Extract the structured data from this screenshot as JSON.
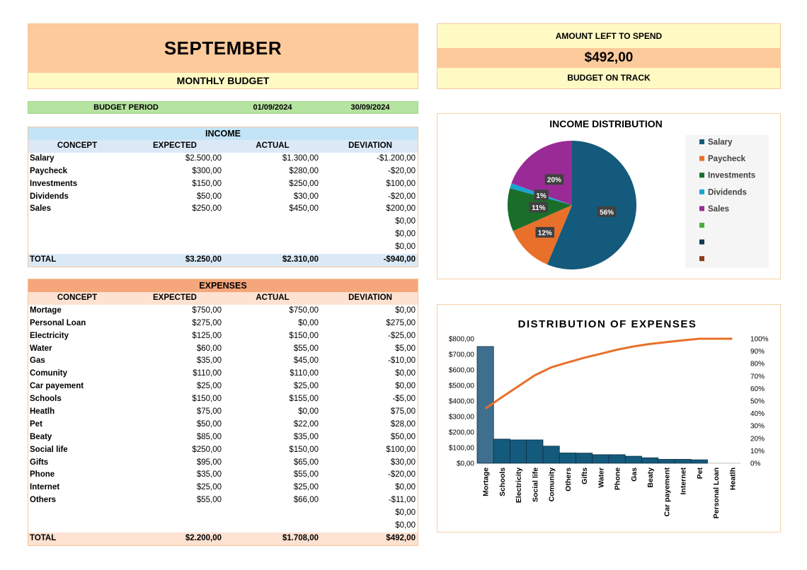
{
  "header": {
    "month": "SEPTEMBER",
    "subtitle": "MONTHLY BUDGET"
  },
  "summary": {
    "amount_label": "AMOUNT LEFT TO SPEND",
    "amount_value": "$492,00",
    "status": "BUDGET ON TRACK"
  },
  "period": {
    "label": "BUDGET PERIOD",
    "start": "01/09/2024",
    "end": "30/09/2024"
  },
  "columns": [
    "CONCEPT",
    "EXPECTED",
    "ACTUAL",
    "DEVIATION"
  ],
  "income": {
    "title": "INCOME",
    "rows": [
      [
        "Salary",
        "$2.500,00",
        "$1.300,00",
        "-$1.200,00"
      ],
      [
        "Paycheck",
        "$300,00",
        "$280,00",
        "-$20,00"
      ],
      [
        "Investments",
        "$150,00",
        "$250,00",
        "$100,00"
      ],
      [
        "Dividends",
        "$50,00",
        "$30,00",
        "-$20,00"
      ],
      [
        "Sales",
        "$250,00",
        "$450,00",
        "$200,00"
      ],
      [
        "",
        "",
        "",
        "$0,00"
      ],
      [
        "",
        "",
        "",
        "$0,00"
      ],
      [
        "",
        "",
        "",
        "$0,00"
      ]
    ],
    "total": [
      "TOTAL",
      "$3.250,00",
      "$2.310,00",
      "-$940,00"
    ]
  },
  "expenses": {
    "title": "EXPENSES",
    "rows": [
      [
        "Mortage",
        "$750,00",
        "$750,00",
        "$0,00"
      ],
      [
        "Personal Loan",
        "$275,00",
        "$0,00",
        "$275,00"
      ],
      [
        "Electricity",
        "$125,00",
        "$150,00",
        "-$25,00"
      ],
      [
        "Water",
        "$60,00",
        "$55,00",
        "$5,00"
      ],
      [
        "Gas",
        "$35,00",
        "$45,00",
        "-$10,00"
      ],
      [
        "Comunity",
        "$110,00",
        "$110,00",
        "$0,00"
      ],
      [
        "Car payement",
        "$25,00",
        "$25,00",
        "$0,00"
      ],
      [
        "Schools",
        "$150,00",
        "$155,00",
        "-$5,00"
      ],
      [
        "Heatlh",
        "$75,00",
        "$0,00",
        "$75,00"
      ],
      [
        "Pet",
        "$50,00",
        "$22,00",
        "$28,00"
      ],
      [
        "Beaty",
        "$85,00",
        "$35,00",
        "$50,00"
      ],
      [
        "Social life",
        "$250,00",
        "$150,00",
        "$100,00"
      ],
      [
        "Gifts",
        "$95,00",
        "$65,00",
        "$30,00"
      ],
      [
        "Phone",
        "$35,00",
        "$55,00",
        "-$20,00"
      ],
      [
        "Internet",
        "$25,00",
        "$25,00",
        "$0,00"
      ],
      [
        "Others",
        "$55,00",
        "$66,00",
        "-$11,00"
      ],
      [
        "",
        "",
        "",
        "$0,00"
      ],
      [
        "",
        "",
        "",
        "$0,00"
      ]
    ],
    "total": [
      "TOTAL",
      "$2.200,00",
      "$1.708,00",
      "$492,00"
    ]
  },
  "chart_data": [
    {
      "type": "pie",
      "title": "INCOME DISTRIBUTION",
      "categories": [
        "Salary",
        "Paycheck",
        "Investments",
        "Dividends",
        "Sales",
        "",
        "",
        ""
      ],
      "values": [
        1300,
        280,
        250,
        30,
        450,
        0,
        0,
        0
      ],
      "labels": [
        "56%",
        "12%",
        "11%",
        "1%",
        "20%"
      ],
      "colors": [
        "#145a7c",
        "#e8702a",
        "#1a6e2a",
        "#1aa3d1",
        "#9a2b96",
        "#4bae3c",
        "#0e3a55",
        "#8a3a1a"
      ],
      "legend": "right"
    },
    {
      "type": "bar",
      "title": "DISTRIBUTION OF EXPENSES",
      "categories": [
        "Mortage",
        "Schools",
        "Electricity",
        "Social life",
        "Comunity",
        "Others",
        "Gifts",
        "Water",
        "Phone",
        "Gas",
        "Beaty",
        "Car payement",
        "Internet",
        "Pet",
        "Personal Loan",
        "Heatlh"
      ],
      "values": [
        750,
        155,
        150,
        150,
        110,
        66,
        65,
        55,
        55,
        45,
        35,
        25,
        25,
        22,
        0,
        0
      ],
      "cumulative_pct": [
        43.9,
        53.0,
        61.8,
        70.6,
        77.0,
        80.9,
        84.7,
        87.9,
        91.2,
        93.8,
        95.8,
        97.3,
        98.7,
        100,
        100,
        100
      ],
      "ylim": [
        0,
        800
      ],
      "yticks": [
        "$0,00",
        "$100,00",
        "$200,00",
        "$300,00",
        "$400,00",
        "$500,00",
        "$600,00",
        "$700,00",
        "$800,00"
      ],
      "y2lim": [
        0,
        100
      ],
      "y2ticks": [
        "0%",
        "10%",
        "20%",
        "30%",
        "40%",
        "50%",
        "60%",
        "70%",
        "80%",
        "90%",
        "100%"
      ],
      "bar_color": "#145a7c",
      "line_color": "#e8702a"
    }
  ]
}
